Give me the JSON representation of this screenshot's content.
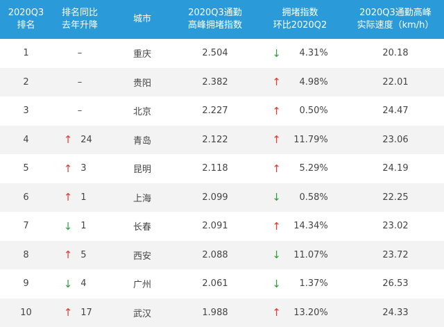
{
  "table": {
    "header": [
      [
        "2020Q3",
        "排名"
      ],
      [
        "排名同比",
        "去年升降"
      ],
      [
        "城市"
      ],
      [
        "2020Q3通勤",
        "高峰拥堵指数"
      ],
      [
        "拥堵指数",
        "环比2020Q2"
      ],
      [
        "2020Q3通勤高峰",
        "实际速度（km/h）"
      ]
    ],
    "up_color": "#e53935",
    "down_color": "#2e9e3e",
    "rows": [
      [
        "1",
        {
          "text": "–"
        },
        "重庆",
        "2.504",
        {
          "arrow": "↓",
          "dir": "down",
          "text": "4.31%"
        },
        "20.18"
      ],
      [
        "2",
        {
          "text": "–"
        },
        "贵阳",
        "2.382",
        {
          "arrow": "↑",
          "dir": "up",
          "text": "4.98%"
        },
        "22.01"
      ],
      [
        "3",
        {
          "text": "–"
        },
        "北京",
        "2.227",
        {
          "arrow": "↑",
          "dir": "up",
          "text": "0.50%"
        },
        "24.47"
      ],
      [
        "4",
        {
          "arrow": "↑",
          "dir": "up",
          "text": "24"
        },
        "青岛",
        "2.122",
        {
          "arrow": "↑",
          "dir": "up",
          "text": "11.79%"
        },
        "23.06"
      ],
      [
        "5",
        {
          "arrow": "↑",
          "dir": "up",
          "text": "3"
        },
        "昆明",
        "2.118",
        {
          "arrow": "↑",
          "dir": "up",
          "text": "5.29%"
        },
        "24.19"
      ],
      [
        "6",
        {
          "arrow": "↑",
          "dir": "up",
          "text": "1"
        },
        "上海",
        "2.099",
        {
          "arrow": "↓",
          "dir": "down",
          "text": "0.58%"
        },
        "22.25"
      ],
      [
        "7",
        {
          "arrow": "↓",
          "dir": "down",
          "text": "1"
        },
        "长春",
        "2.091",
        {
          "arrow": "↑",
          "dir": "up",
          "text": "14.34%"
        },
        "23.02"
      ],
      [
        "8",
        {
          "arrow": "↑",
          "dir": "up",
          "text": "5"
        },
        "西安",
        "2.088",
        {
          "arrow": "↓",
          "dir": "down",
          "text": "11.07%"
        },
        "23.72"
      ],
      [
        "9",
        {
          "arrow": "↓",
          "dir": "down",
          "text": "4"
        },
        "广州",
        "2.061",
        {
          "arrow": "↓",
          "dir": "down",
          "text": "1.37%"
        },
        "26.53"
      ],
      [
        "10",
        {
          "arrow": "↑",
          "dir": "up",
          "text": "17"
        },
        "武汉",
        "1.988",
        {
          "arrow": "↑",
          "dir": "up",
          "text": "13.20%"
        },
        "24.33"
      ]
    ]
  }
}
